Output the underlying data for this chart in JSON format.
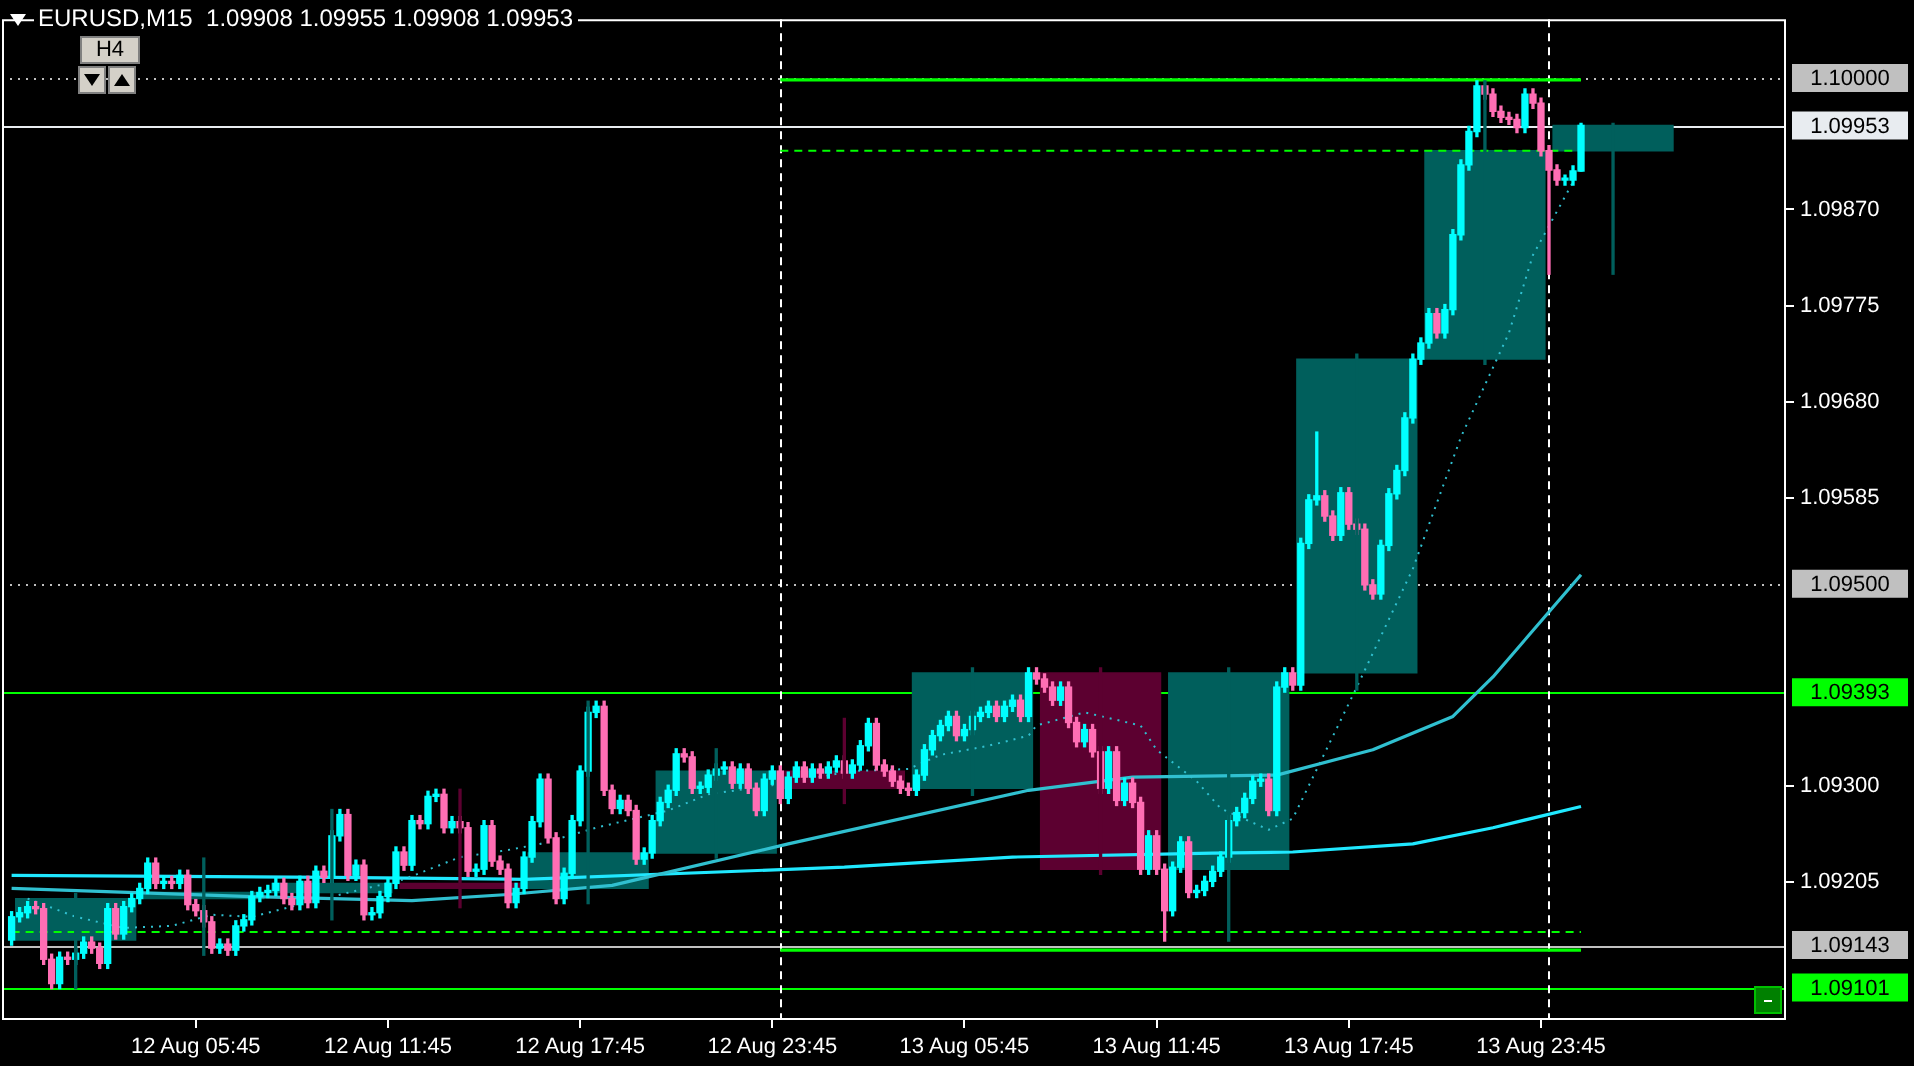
{
  "chart_data": {
    "type": "candlestick",
    "title": "EURUSD,M15  1.09908 1.09955 1.09908 1.09953",
    "annotations": [
      "H4"
    ],
    "xlim": [
      "--08-11T23:42",
      "--08-14T07:24"
    ],
    "xticks": [
      {
        "value": "--08-12T05:45",
        "label": "12 Aug 05:45"
      },
      {
        "value": "--08-12T11:45",
        "label": "12 Aug 11:45"
      },
      {
        "value": "--08-12T17:45",
        "label": "12 Aug 17:45"
      },
      {
        "value": "--08-12T23:45",
        "label": "12 Aug 23:45"
      },
      {
        "value": "--08-13T05:45",
        "label": "13 Aug 05:45"
      },
      {
        "value": "--08-13T11:45",
        "label": "13 Aug 11:45"
      },
      {
        "value": "--08-13T17:45",
        "label": "13 Aug 17:45"
      },
      {
        "value": "--08-13T23:45",
        "label": "13 Aug 23:45"
      }
    ],
    "ylim": [
      1.09069,
      1.10058
    ],
    "yticks": [
      1.09205,
      {
        "value": 1.093,
        "label": "1.09300"
      },
      1.09585,
      {
        "value": 1.0968,
        "label": "1.09680"
      },
      1.09775,
      {
        "value": 1.0987,
        "label": "1.09870"
      }
    ],
    "grid": false,
    "ref_lines": [
      {
        "axis": "y",
        "value": 1.1,
        "label": "1.10000",
        "color": "#c0c0c0",
        "line_style": "dotted"
      },
      {
        "axis": "y",
        "value": 1.09953,
        "label": "1.09953",
        "color": "#e8ecf0",
        "line_style": "solid"
      },
      {
        "axis": "y",
        "value": 1.095,
        "label": "1.09500",
        "color": "#c0c0c0",
        "line_style": "dotted"
      },
      {
        "axis": "y",
        "value": 1.09393,
        "label": "1.09393",
        "color": "#00ff00",
        "line_style": "solid"
      },
      {
        "axis": "y",
        "value": 1.09143,
        "label": "1.09143",
        "color": "#c0c0c0",
        "line_style": "solid"
      },
      {
        "axis": "y",
        "value": 1.09101,
        "label": "1.09101",
        "color": "#00ff00",
        "line_style": "solid"
      },
      {
        "axis": "x",
        "value": "--08-13T00:00",
        "label": null,
        "color": "#ffffff",
        "line_style": "dashed"
      },
      {
        "axis": "x",
        "value": "--08-14T00:00",
        "label": null,
        "color": "#ffffff",
        "line_style": "dashed"
      }
    ],
    "series": [
      {
        "x": [
          "--08-12T02:00",
          "--08-12T06:00",
          "--08-12T10:00",
          "--08-12T14:00",
          "--08-12T18:00",
          "--08-12T22:00",
          "--08-13T02:00",
          "--08-13T06:00",
          "--08-13T10:00",
          "--08-13T14:00",
          "--08-13T18:00",
          "--08-13T22:00",
          "--08-14T02:00"
        ],
        "colors": [
          "#005f5c",
          "#005f5c",
          "#005f5c",
          "#5c0030",
          "#005f5c",
          "#005f5c",
          "#5c0030",
          "#005f5c",
          "#5c0030",
          "#005f5c",
          "#005f5c",
          "#005f5c",
          "#005f5c"
        ],
        "ohlc": [
          [
            1.09148,
            1.09194,
            1.091,
            1.09189
          ],
          [
            1.09189,
            1.09229,
            1.09133,
            1.09195
          ],
          [
            1.09195,
            1.09277,
            1.09168,
            1.09204
          ],
          [
            1.09204,
            1.09297,
            1.0918,
            1.09199
          ],
          [
            1.09199,
            1.09384,
            1.09184,
            1.09234
          ],
          [
            1.09234,
            1.09337,
            1.09229,
            1.09315
          ],
          [
            1.09315,
            1.09367,
            1.09283,
            1.09298
          ],
          [
            1.09298,
            1.09417,
            1.09291,
            1.09412
          ],
          [
            1.09412,
            1.09417,
            1.09213,
            1.09218
          ],
          [
            1.09218,
            1.09417,
            1.09147,
            1.09412
          ],
          [
            1.09412,
            1.09727,
            1.09395,
            1.09722
          ],
          [
            1.09722,
            1.09997,
            1.09717,
            1.09928
          ],
          [
            1.09928,
            1.09955,
            1.09806,
            1.09953
          ]
        ]
      },
      {
        "type": "line",
        "color": "#20e8ff",
        "line_style": "solid",
        "x": [
          "--08-12T00:00",
          "--08-12T10:00",
          "--08-12T16:00",
          "--08-13T02:00",
          "--08-13T07:15",
          "--08-13T13:30",
          "--08-13T16:00",
          "--08-13T19:45",
          "--08-13T22:15",
          "--08-14T01:00"
        ],
        "values": [
          1.09212,
          1.0921,
          1.09208,
          1.0922,
          1.0923,
          1.09234,
          1.09235,
          1.09243,
          1.09259,
          1.0928
        ]
      },
      {
        "type": "line",
        "color": "#30c0d0",
        "line_style": "solid",
        "x": [
          "--08-12T00:00",
          "--08-12T07:30",
          "--08-12T12:30",
          "--08-12T15:30",
          "--08-12T18:45",
          "--08-13T00:15",
          "--08-13T07:45",
          "--08-13T11:00",
          "--08-13T15:30",
          "--08-13T18:30",
          "--08-13T21:00",
          "--08-13T22:15",
          "--08-14T01:00"
        ],
        "values": [
          1.09199,
          1.09191,
          1.09187,
          1.09193,
          1.09202,
          1.09243,
          1.09296,
          1.09309,
          1.09311,
          1.09336,
          1.09369,
          1.09408,
          1.09509
        ]
      },
      {
        "type": "line",
        "color": "#30c0d0",
        "line_style": "dotted",
        "x": [
          "--08-12T00:30",
          "--08-12T02:00",
          "--08-12T03:30",
          "--08-12T05:00",
          "--08-12T06:15",
          "--08-12T07:30",
          "--08-12T10:00",
          "--08-12T12:15",
          "--08-12T14:00",
          "--08-12T15:30",
          "--08-12T16:30",
          "--08-12T18:15",
          "--08-12T20:30",
          "--08-12T21:45",
          "--08-12T23:45",
          "--08-13T02:15",
          "--08-13T04:00",
          "--08-13T05:00",
          "--08-13T06:30",
          "--08-13T07:45",
          "--08-13T08:00",
          "--08-13T09:30",
          "--08-13T11:15",
          "--08-13T11:45",
          "--08-13T13:00",
          "--08-13T13:45",
          "--08-13T15:15",
          "--08-13T16:00",
          "--08-13T18:00",
          "--08-13T19:45",
          "--08-13T21:15",
          "--08-13T22:45",
          "--08-13T23:30",
          "--08-14T00:45"
        ],
        "values": [
          1.09189,
          1.09171,
          1.0916,
          1.09162,
          1.09173,
          1.09171,
          1.09191,
          1.09208,
          1.0923,
          1.09237,
          1.09243,
          1.09259,
          1.09276,
          1.09292,
          1.09301,
          1.09315,
          1.09317,
          1.09331,
          1.0934,
          1.0935,
          1.0936,
          1.09373,
          1.0936,
          1.09336,
          1.09305,
          1.09278,
          1.09257,
          1.09268,
          1.09398,
          1.09515,
          1.09645,
          1.09748,
          1.09825,
          1.09897
        ]
      },
      {
        "type": "line",
        "color": "#00ff00",
        "line_style": "solid",
        "x": [
          "--08-13T00:00",
          "--08-14T01:00"
        ],
        "values": [
          1.09998,
          1.09998
        ]
      },
      {
        "type": "line",
        "color": "#00ff00",
        "line_style": "solid",
        "x": [
          "--08-13T00:00",
          "--08-14T01:00"
        ],
        "values": [
          1.09138,
          1.09138
        ]
      },
      {
        "type": "line",
        "color": "#00ff00",
        "line_style": "dashed",
        "x": [
          "--08-13T00:00",
          "--08-14T01:00"
        ],
        "values": [
          1.09928,
          1.09928
        ]
      },
      {
        "type": "line",
        "color": "#00ff00",
        "line_style": "dashed",
        "x": [
          "--08-12T00:00",
          "--08-14T01:00"
        ],
        "values": [
          1.09156,
          1.09156
        ]
      },
      {
        "x": [
          "--08-12T00:00",
          "--08-12T00:15",
          "--08-12T00:30",
          "--08-12T00:45",
          "--08-12T01:00",
          "--08-12T01:15",
          "--08-12T01:30",
          "--08-12T01:45",
          "--08-12T02:00",
          "--08-12T02:15",
          "--08-12T02:30",
          "--08-12T02:45",
          "--08-12T03:00",
          "--08-12T03:15",
          "--08-12T03:30",
          "--08-12T03:45",
          "--08-12T04:00",
          "--08-12T04:15",
          "--08-12T04:30",
          "--08-12T04:45",
          "--08-12T05:00",
          "--08-12T05:15",
          "--08-12T05:30",
          "--08-12T05:45",
          "--08-12T06:00",
          "--08-12T06:15",
          "--08-12T06:30",
          "--08-12T06:45",
          "--08-12T07:00",
          "--08-12T07:15",
          "--08-12T07:30",
          "--08-12T07:45",
          "--08-12T08:00",
          "--08-12T08:15",
          "--08-12T08:30",
          "--08-12T08:45",
          "--08-12T09:00",
          "--08-12T09:15",
          "--08-12T09:30",
          "--08-12T09:45",
          "--08-12T10:00",
          "--08-12T10:15",
          "--08-12T10:30",
          "--08-12T10:45",
          "--08-12T11:00",
          "--08-12T11:15",
          "--08-12T11:30",
          "--08-12T11:45",
          "--08-12T12:00",
          "--08-12T12:15",
          "--08-12T12:30",
          "--08-12T12:45",
          "--08-12T13:00",
          "--08-12T13:15",
          "--08-12T13:30",
          "--08-12T13:45",
          "--08-12T14:00",
          "--08-12T14:15",
          "--08-12T14:30",
          "--08-12T14:45",
          "--08-12T15:00",
          "--08-12T15:15",
          "--08-12T15:30",
          "--08-12T15:45",
          "--08-12T16:00",
          "--08-12T16:15",
          "--08-12T16:30",
          "--08-12T16:45",
          "--08-12T17:00",
          "--08-12T17:15",
          "--08-12T17:30",
          "--08-12T17:45",
          "--08-12T18:00",
          "--08-12T18:15",
          "--08-12T18:30",
          "--08-12T18:45",
          "--08-12T19:00",
          "--08-12T19:15",
          "--08-12T19:30",
          "--08-12T19:45",
          "--08-12T20:00",
          "--08-12T20:15",
          "--08-12T20:30",
          "--08-12T20:45",
          "--08-12T21:00",
          "--08-12T21:15",
          "--08-12T21:30",
          "--08-12T21:45",
          "--08-12T22:00",
          "--08-12T22:15",
          "--08-12T22:30",
          "--08-12T22:45",
          "--08-12T23:00",
          "--08-12T23:15",
          "--08-12T23:30",
          "--08-12T23:45",
          "--08-13T00:00",
          "--08-13T00:15",
          "--08-13T00:30",
          "--08-13T00:45",
          "--08-13T01:00",
          "--08-13T01:15",
          "--08-13T01:30",
          "--08-13T01:45",
          "--08-13T02:00",
          "--08-13T02:15",
          "--08-13T02:30",
          "--08-13T02:45",
          "--08-13T03:00",
          "--08-13T03:15",
          "--08-13T03:30",
          "--08-13T03:45",
          "--08-13T04:00",
          "--08-13T04:15",
          "--08-13T04:30",
          "--08-13T04:45",
          "--08-13T05:00",
          "--08-13T05:15",
          "--08-13T05:30",
          "--08-13T05:45",
          "--08-13T06:00",
          "--08-13T06:15",
          "--08-13T06:30",
          "--08-13T06:45",
          "--08-13T07:00",
          "--08-13T07:15",
          "--08-13T07:30",
          "--08-13T07:45",
          "--08-13T08:00",
          "--08-13T08:15",
          "--08-13T08:30",
          "--08-13T08:45",
          "--08-13T09:00",
          "--08-13T09:15",
          "--08-13T09:30",
          "--08-13T09:45",
          "--08-13T10:00",
          "--08-13T10:15",
          "--08-13T10:30",
          "--08-13T10:45",
          "--08-13T11:00",
          "--08-13T11:15",
          "--08-13T11:30",
          "--08-13T11:45",
          "--08-13T12:00",
          "--08-13T12:15",
          "--08-13T12:30",
          "--08-13T12:45",
          "--08-13T13:00",
          "--08-13T13:15",
          "--08-13T13:30",
          "--08-13T13:45",
          "--08-13T14:00",
          "--08-13T14:15",
          "--08-13T14:30",
          "--08-13T14:45",
          "--08-13T15:00",
          "--08-13T15:15",
          "--08-13T15:30",
          "--08-13T15:45",
          "--08-13T16:00",
          "--08-13T16:15",
          "--08-13T16:30",
          "--08-13T16:45",
          "--08-13T17:00",
          "--08-13T17:15",
          "--08-13T17:30",
          "--08-13T17:45",
          "--08-13T18:00",
          "--08-13T18:15",
          "--08-13T18:30",
          "--08-13T18:45",
          "--08-13T19:00",
          "--08-13T19:15",
          "--08-13T19:30",
          "--08-13T19:45",
          "--08-13T20:00",
          "--08-13T20:15",
          "--08-13T20:30",
          "--08-13T20:45",
          "--08-13T21:00",
          "--08-13T21:15",
          "--08-13T21:30",
          "--08-13T21:45",
          "--08-13T22:00",
          "--08-13T22:15",
          "--08-13T22:30",
          "--08-13T22:45",
          "--08-13T23:00",
          "--08-13T23:15",
          "--08-13T23:30",
          "--08-13T23:45",
          "--08-14T00:00",
          "--08-14T00:15",
          "--08-14T00:30",
          "--08-14T00:45",
          "--08-14T01:00"
        ],
        "colors": [
          "#00ffff",
          "#00ffff",
          "#00ffff",
          "#ff6eb4",
          "#ff6eb4",
          "#ff6eb4",
          "#00ffff",
          "#ff6eb4",
          "#00ffff",
          "#00ffff",
          "#ff6eb4",
          "#ff6eb4",
          "#00ffff",
          "#ff6eb4",
          "#00ffff",
          "#00ffff",
          "#00ffff",
          "#00ffff",
          "#ff6eb4",
          "#00ffff",
          "#ff6eb4",
          "#00ffff",
          "#ff6eb4",
          "#ff6eb4",
          "#ff6eb4",
          "#ff6eb4",
          "#00ffff",
          "#ff6eb4",
          "#00ffff",
          "#00ffff",
          "#00ffff",
          "#00ffff",
          "#00ffff",
          "#00ffff",
          "#ff6eb4",
          "#ff6eb4",
          "#00ffff",
          "#ff6eb4",
          "#00ffff",
          "#ff6eb4",
          "#00ffff",
          "#00ffff",
          "#ff6eb4",
          "#00ffff",
          "#ff6eb4",
          "#00ffff",
          "#00ffff",
          "#00ffff",
          "#00ffff",
          "#ff6eb4",
          "#00ffff",
          "#ff6eb4",
          "#00ffff",
          "#00ffff",
          "#ff6eb4",
          "#00ffff",
          "#ff6eb4",
          "#ff6eb4",
          "#00ffff",
          "#00ffff",
          "#ff6eb4",
          "#ff6eb4",
          "#ff6eb4",
          "#00ffff",
          "#00ffff",
          "#00ffff",
          "#00ffff",
          "#ff6eb4",
          "#ff6eb4",
          "#00ffff",
          "#00ffff",
          "#00ffff",
          "#00ffff",
          "#00ffff",
          "#ff6eb4",
          "#ff6eb4",
          "#00ffff",
          "#ff6eb4",
          "#ff6eb4",
          "#00ffff",
          "#00ffff",
          "#00ffff",
          "#00ffff",
          "#00ffff",
          "#ff6eb4",
          "#ff6eb4",
          "#00ffff",
          "#00ffff",
          "#00ffff",
          "#00ffff",
          "#ff6eb4",
          "#00ffff",
          "#ff6eb4",
          "#ff6eb4",
          "#00ffff",
          "#00ffff",
          "#ff6eb4",
          "#00ffff",
          "#00ffff",
          "#ff6eb4",
          "#00ffff",
          "#ff6eb4",
          "#00ffff",
          "#00ffff",
          "#ff6eb4",
          "#00ffff",
          "#00ffff",
          "#00ffff",
          "#ff6eb4",
          "#ff6eb4",
          "#ff6eb4",
          "#ff6eb4",
          "#ff6eb4",
          "#00ffff",
          "#00ffff",
          "#00ffff",
          "#00ffff",
          "#00ffff",
          "#ff6eb4",
          "#00ffff",
          "#00ffff",
          "#00ffff",
          "#00ffff",
          "#ff6eb4",
          "#00ffff",
          "#00ffff",
          "#ff6eb4",
          "#00ffff",
          "#ff6eb4",
          "#ff6eb4",
          "#ff6eb4",
          "#00ffff",
          "#ff6eb4",
          "#ff6eb4",
          "#00ffff",
          "#ff6eb4",
          "#ff6eb4",
          "#00ffff",
          "#ff6eb4",
          "#00ffff",
          "#ff6eb4",
          "#ff6eb4",
          "#00ffff",
          "#ff6eb4",
          "#ff6eb4",
          "#00ffff",
          "#00ffff",
          "#ff6eb4",
          "#00ffff",
          "#00ffff",
          "#00ffff",
          "#00ffff",
          "#00ffff",
          "#00ffff",
          "#00ffff",
          "#00ffff",
          "#00ffff",
          "#ff6eb4",
          "#00ffff",
          "#00ffff",
          "#ff6eb4",
          "#00ffff",
          "#00ffff",
          "#00ffff",
          "#ff6eb4",
          "#ff6eb4",
          "#00ffff",
          "#ff6eb4",
          "#ff6eb4",
          "#ff6eb4",
          "#ff6eb4",
          "#00ffff",
          "#00ffff",
          "#00ffff",
          "#00ffff",
          "#00ffff",
          "#00ffff",
          "#00ffff",
          "#ff6eb4",
          "#00ffff",
          "#00ffff",
          "#00ffff",
          "#00ffff",
          "#00ffff",
          "#ff6eb4",
          "#ff6eb4",
          "#ff6eb4",
          "#ff6eb4",
          "#ff6eb4",
          "#00ffff",
          "#ff6eb4",
          "#ff6eb4",
          "#ff6eb4",
          "#ff6eb4",
          "#00ffff",
          "#00ffff",
          "#00ffff"
        ],
        "ohlc": [
          [
            1.09148,
            1.09176,
            1.09143,
            1.09171
          ],
          [
            1.09171,
            1.0918,
            1.09166,
            1.09175
          ],
          [
            1.09175,
            1.09186,
            1.0917,
            1.09181
          ],
          [
            1.09181,
            1.09186,
            1.09174,
            1.09179
          ],
          [
            1.09179,
            1.09184,
            1.09124,
            1.09129
          ],
          [
            1.09129,
            1.09134,
            1.091,
            1.09105
          ],
          [
            1.09105,
            1.09136,
            1.091,
            1.09131
          ],
          [
            1.09131,
            1.09136,
            1.09124,
            1.09129
          ],
          [
            1.09129,
            1.0914,
            1.09124,
            1.09135
          ],
          [
            1.09135,
            1.09151,
            1.0913,
            1.09146
          ],
          [
            1.09146,
            1.09151,
            1.09135,
            1.0914
          ],
          [
            1.0914,
            1.09145,
            1.0912,
            1.09125
          ],
          [
            1.09125,
            1.09184,
            1.0912,
            1.09179
          ],
          [
            1.09179,
            1.09184,
            1.09149,
            1.09154
          ],
          [
            1.09154,
            1.09186,
            1.09149,
            1.09181
          ],
          [
            1.09181,
            1.09194,
            1.09176,
            1.09189
          ],
          [
            1.09189,
            1.09204,
            1.09184,
            1.09199
          ],
          [
            1.09199,
            1.09229,
            1.09194,
            1.09224
          ],
          [
            1.09224,
            1.09229,
            1.09199,
            1.09204
          ],
          [
            1.09204,
            1.09211,
            1.09199,
            1.09206
          ],
          [
            1.09206,
            1.09211,
            1.09199,
            1.09204
          ],
          [
            1.09204,
            1.09217,
            1.09199,
            1.09212
          ],
          [
            1.09212,
            1.09217,
            1.09178,
            1.09183
          ],
          [
            1.09183,
            1.09188,
            1.09172,
            1.09177
          ],
          [
            1.09177,
            1.09182,
            1.09161,
            1.09166
          ],
          [
            1.09166,
            1.09171,
            1.09135,
            1.0914
          ],
          [
            1.0914,
            1.09149,
            1.09135,
            1.09144
          ],
          [
            1.09144,
            1.09149,
            1.09133,
            1.09138
          ],
          [
            1.09138,
            1.09167,
            1.09133,
            1.09162
          ],
          [
            1.09162,
            1.09173,
            1.09157,
            1.09168
          ],
          [
            1.09168,
            1.09196,
            1.09163,
            1.09191
          ],
          [
            1.09191,
            1.092,
            1.09186,
            1.09195
          ],
          [
            1.09195,
            1.09202,
            1.0919,
            1.09197
          ],
          [
            1.09197,
            1.09209,
            1.09192,
            1.09204
          ],
          [
            1.09204,
            1.09209,
            1.09184,
            1.09189
          ],
          [
            1.09189,
            1.09194,
            1.09178,
            1.09183
          ],
          [
            1.09183,
            1.09211,
            1.09178,
            1.09206
          ],
          [
            1.09206,
            1.09211,
            1.0918,
            1.09185
          ],
          [
            1.09185,
            1.09221,
            1.0918,
            1.09216
          ],
          [
            1.09216,
            1.09221,
            1.09205,
            1.0921
          ],
          [
            1.0921,
            1.09256,
            1.09205,
            1.09251
          ],
          [
            1.09251,
            1.09277,
            1.09246,
            1.09272
          ],
          [
            1.09272,
            1.09277,
            1.09207,
            1.09212
          ],
          [
            1.09212,
            1.09227,
            1.09207,
            1.09222
          ],
          [
            1.09222,
            1.09227,
            1.09168,
            1.09173
          ],
          [
            1.09173,
            1.0918,
            1.09168,
            1.09175
          ],
          [
            1.09175,
            1.09196,
            1.0917,
            1.09191
          ],
          [
            1.09191,
            1.09209,
            1.09186,
            1.09204
          ],
          [
            1.09204,
            1.0924,
            1.09199,
            1.09235
          ],
          [
            1.09235,
            1.0924,
            1.09217,
            1.09222
          ],
          [
            1.09222,
            1.09271,
            1.09217,
            1.09266
          ],
          [
            1.09266,
            1.09271,
            1.09258,
            1.09263
          ],
          [
            1.09263,
            1.09295,
            1.09258,
            1.0929
          ],
          [
            1.0929,
            1.09297,
            1.09285,
            1.09292
          ],
          [
            1.09292,
            1.09297,
            1.09254,
            1.09259
          ],
          [
            1.09259,
            1.0927,
            1.09254,
            1.09265
          ],
          [
            1.09265,
            1.0927,
            1.09254,
            1.09259
          ],
          [
            1.09259,
            1.09264,
            1.09211,
            1.09216
          ],
          [
            1.09216,
            1.09223,
            1.09211,
            1.09218
          ],
          [
            1.09218,
            1.09266,
            1.09213,
            1.09261
          ],
          [
            1.09261,
            1.09266,
            1.09221,
            1.09226
          ],
          [
            1.09226,
            1.09231,
            1.09213,
            1.09218
          ],
          [
            1.09218,
            1.09223,
            1.0918,
            1.09185
          ],
          [
            1.09185,
            1.09204,
            1.0918,
            1.09199
          ],
          [
            1.09199,
            1.09235,
            1.09194,
            1.0923
          ],
          [
            1.0923,
            1.0927,
            1.09225,
            1.09265
          ],
          [
            1.09265,
            1.09312,
            1.0926,
            1.09307
          ],
          [
            1.09307,
            1.09312,
            1.09244,
            1.09249
          ],
          [
            1.09249,
            1.09254,
            1.09184,
            1.09189
          ],
          [
            1.09189,
            1.09219,
            1.09184,
            1.09214
          ],
          [
            1.09214,
            1.09271,
            1.09209,
            1.09266
          ],
          [
            1.09266,
            1.0932,
            1.09261,
            1.09315
          ],
          [
            1.09315,
            1.09378,
            1.0931,
            1.09373
          ],
          [
            1.09373,
            1.09384,
            1.09368,
            1.09379
          ],
          [
            1.09379,
            1.09384,
            1.09291,
            1.09296
          ],
          [
            1.09296,
            1.09301,
            1.09273,
            1.09278
          ],
          [
            1.09278,
            1.09291,
            1.09273,
            1.09286
          ],
          [
            1.09286,
            1.09291,
            1.09271,
            1.09276
          ],
          [
            1.09276,
            1.09281,
            1.09223,
            1.09228
          ],
          [
            1.09228,
            1.09239,
            1.09223,
            1.09234
          ],
          [
            1.09234,
            1.09271,
            1.09229,
            1.09266
          ],
          [
            1.09266,
            1.09289,
            1.09261,
            1.09284
          ],
          [
            1.09284,
            1.09301,
            1.09279,
            1.09296
          ],
          [
            1.09296,
            1.09337,
            1.09291,
            1.09332
          ],
          [
            1.09332,
            1.09337,
            1.09324,
            1.09329
          ],
          [
            1.09329,
            1.09334,
            1.09293,
            1.09298
          ],
          [
            1.09298,
            1.09304,
            1.09293,
            1.09299
          ],
          [
            1.09299,
            1.09316,
            1.09294,
            1.09311
          ],
          [
            1.09311,
            1.09322,
            1.09306,
            1.09317
          ],
          [
            1.09317,
            1.09324,
            1.09312,
            1.09319
          ],
          [
            1.09319,
            1.09324,
            1.09298,
            1.09303
          ],
          [
            1.09303,
            1.09322,
            1.09298,
            1.09317
          ],
          [
            1.09317,
            1.09322,
            1.09293,
            1.09298
          ],
          [
            1.09298,
            1.09303,
            1.09271,
            1.09276
          ],
          [
            1.09276,
            1.09312,
            1.09271,
            1.09307
          ],
          [
            1.09307,
            1.0932,
            1.09302,
            1.09315
          ],
          [
            1.09315,
            1.0932,
            1.09283,
            1.09288
          ],
          [
            1.09288,
            1.09314,
            1.09283,
            1.09309
          ],
          [
            1.09309,
            1.09324,
            1.09304,
            1.09319
          ],
          [
            1.09319,
            1.09324,
            1.09304,
            1.09309
          ],
          [
            1.09309,
            1.09322,
            1.09304,
            1.09317
          ],
          [
            1.09317,
            1.09322,
            1.09308,
            1.09313
          ],
          [
            1.09313,
            1.09324,
            1.09308,
            1.09319
          ],
          [
            1.09319,
            1.0933,
            1.09314,
            1.09325
          ],
          [
            1.09325,
            1.0933,
            1.09308,
            1.09313
          ],
          [
            1.09313,
            1.09326,
            1.09308,
            1.09321
          ],
          [
            1.09321,
            1.09345,
            1.09316,
            1.0934
          ],
          [
            1.0934,
            1.09367,
            1.09335,
            1.09362
          ],
          [
            1.09362,
            1.09367,
            1.09316,
            1.09321
          ],
          [
            1.09321,
            1.09326,
            1.0931,
            1.09315
          ],
          [
            1.09315,
            1.0932,
            1.093,
            1.09305
          ],
          [
            1.09305,
            1.0931,
            1.09293,
            1.09298
          ],
          [
            1.09298,
            1.09303,
            1.09291,
            1.09296
          ],
          [
            1.09296,
            1.09316,
            1.09291,
            1.09311
          ],
          [
            1.09311,
            1.09341,
            1.09306,
            1.09336
          ],
          [
            1.09336,
            1.09355,
            1.09331,
            1.0935
          ],
          [
            1.0935,
            1.09365,
            1.09345,
            1.0936
          ],
          [
            1.0936,
            1.09374,
            1.09355,
            1.09369
          ],
          [
            1.09369,
            1.09374,
            1.09345,
            1.0935
          ],
          [
            1.0935,
            1.09361,
            1.09345,
            1.09356
          ],
          [
            1.09356,
            1.09374,
            1.09351,
            1.09369
          ],
          [
            1.09369,
            1.09378,
            1.09364,
            1.09373
          ],
          [
            1.09373,
            1.09384,
            1.09368,
            1.09379
          ],
          [
            1.09379,
            1.09384,
            1.09364,
            1.09369
          ],
          [
            1.09369,
            1.09384,
            1.09364,
            1.09379
          ],
          [
            1.09379,
            1.0939,
            1.09374,
            1.09385
          ],
          [
            1.09385,
            1.0939,
            1.09364,
            1.09369
          ],
          [
            1.09369,
            1.09417,
            1.09364,
            1.09412
          ],
          [
            1.09412,
            1.09417,
            1.09401,
            1.09406
          ],
          [
            1.09406,
            1.09411,
            1.09393,
            1.09398
          ],
          [
            1.09398,
            1.09403,
            1.0938,
            1.09385
          ],
          [
            1.09385,
            1.09403,
            1.0938,
            1.09398
          ],
          [
            1.09398,
            1.09403,
            1.09358,
            1.09363
          ],
          [
            1.09363,
            1.09368,
            1.09339,
            1.09344
          ],
          [
            1.09344,
            1.09361,
            1.09339,
            1.09356
          ],
          [
            1.09356,
            1.09361,
            1.09329,
            1.09334
          ],
          [
            1.09334,
            1.09339,
            1.09293,
            1.09298
          ],
          [
            1.09298,
            1.09339,
            1.09293,
            1.09334
          ],
          [
            1.09334,
            1.09339,
            1.09281,
            1.09286
          ],
          [
            1.09286,
            1.09308,
            1.09281,
            1.09303
          ],
          [
            1.09303,
            1.09308,
            1.09279,
            1.09284
          ],
          [
            1.09284,
            1.09289,
            1.09213,
            1.09218
          ],
          [
            1.09218,
            1.09256,
            1.09213,
            1.09251
          ],
          [
            1.09251,
            1.09256,
            1.09213,
            1.09218
          ],
          [
            1.09218,
            1.09223,
            1.09147,
            1.09177
          ],
          [
            1.09177,
            1.09225,
            1.09172,
            1.0922
          ],
          [
            1.0922,
            1.0925,
            1.09215,
            1.09245
          ],
          [
            1.09245,
            1.0925,
            1.0919,
            1.09195
          ],
          [
            1.09195,
            1.09202,
            1.0919,
            1.09197
          ],
          [
            1.09197,
            1.09211,
            1.09192,
            1.09206
          ],
          [
            1.09206,
            1.09221,
            1.09201,
            1.09216
          ],
          [
            1.09216,
            1.09235,
            1.09211,
            1.0923
          ],
          [
            1.0923,
            1.09271,
            1.09225,
            1.09266
          ],
          [
            1.09266,
            1.09279,
            1.09261,
            1.09274
          ],
          [
            1.09274,
            1.09293,
            1.09269,
            1.09288
          ],
          [
            1.09288,
            1.0931,
            1.09283,
            1.09305
          ],
          [
            1.09305,
            1.09312,
            1.093,
            1.09307
          ],
          [
            1.09307,
            1.09312,
            1.09271,
            1.09276
          ],
          [
            1.09276,
            1.09403,
            1.09271,
            1.09398
          ],
          [
            1.09398,
            1.09417,
            1.09393,
            1.09412
          ],
          [
            1.09412,
            1.09417,
            1.09395,
            1.094
          ],
          [
            1.094,
            1.09545,
            1.09395,
            1.0954
          ],
          [
            1.0954,
            1.09588,
            1.09535,
            1.09583
          ],
          [
            1.09583,
            1.0965,
            1.09578,
            1.09587
          ],
          [
            1.09587,
            1.09592,
            1.09562,
            1.09567
          ],
          [
            1.09567,
            1.09572,
            1.09543,
            1.09548
          ],
          [
            1.09548,
            1.09595,
            1.09543,
            1.0959
          ],
          [
            1.0959,
            1.09595,
            1.09554,
            1.09559
          ],
          [
            1.09559,
            1.09564,
            1.09549,
            1.09554
          ],
          [
            1.09554,
            1.09559,
            1.09494,
            1.09499
          ],
          [
            1.09499,
            1.09504,
            1.09485,
            1.0949
          ],
          [
            1.0949,
            1.09543,
            1.09485,
            1.09538
          ],
          [
            1.09538,
            1.09594,
            1.09533,
            1.09589
          ],
          [
            1.09589,
            1.09617,
            1.09584,
            1.09612
          ],
          [
            1.09612,
            1.09669,
            1.09607,
            1.09664
          ],
          [
            1.09664,
            1.09727,
            1.09659,
            1.09722
          ],
          [
            1.09722,
            1.09743,
            1.09717,
            1.09738
          ],
          [
            1.09738,
            1.09772,
            1.09733,
            1.09767
          ],
          [
            1.09767,
            1.09772,
            1.09743,
            1.09748
          ],
          [
            1.09748,
            1.09776,
            1.09743,
            1.09771
          ],
          [
            1.09771,
            1.0985,
            1.09766,
            1.09845
          ],
          [
            1.09845,
            1.09919,
            1.0984,
            1.09914
          ],
          [
            1.09914,
            1.09952,
            1.09909,
            1.09947
          ],
          [
            1.09947,
            1.09997,
            1.09942,
            1.09992
          ],
          [
            1.09992,
            1.09992,
            1.09979,
            1.09984
          ],
          [
            1.09984,
            1.09989,
            1.09962,
            1.09967
          ],
          [
            1.09967,
            1.09972,
            1.09956,
            1.09961
          ],
          [
            1.09961,
            1.09966,
            1.09954,
            1.09959
          ],
          [
            1.09959,
            1.09964,
            1.09946,
            1.09951
          ],
          [
            1.09951,
            1.09989,
            1.09946,
            1.09984
          ],
          [
            1.09984,
            1.09989,
            1.0997,
            1.09975
          ],
          [
            1.09975,
            1.0998,
            1.09923,
            1.09928
          ],
          [
            1.09928,
            1.09933,
            1.09806,
            1.09909
          ],
          [
            1.09909,
            1.09914,
            1.09894,
            1.09899
          ],
          [
            1.09899,
            1.09904,
            1.09894,
            1.09899
          ],
          [
            1.09899,
            1.09913,
            1.09894,
            1.09908
          ],
          [
            1.09908,
            1.09955,
            1.09908,
            1.09953
          ]
        ]
      }
    ]
  }
}
